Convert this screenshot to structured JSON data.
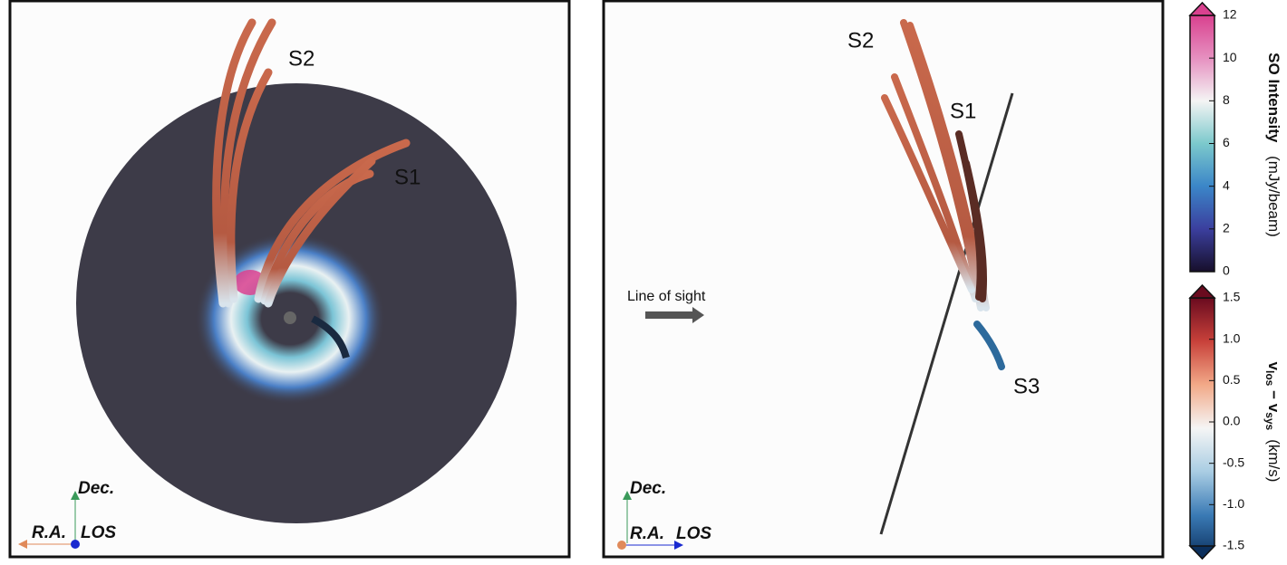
{
  "panels": [
    {
      "labels": [
        "S2",
        "S1"
      ],
      "axes": {
        "up": "Dec.",
        "left": "R.A.",
        "right": "LOS"
      }
    },
    {
      "labels": [
        "S2",
        "S1",
        "S3"
      ],
      "axes": {
        "up": "Dec.",
        "left": "R.A.",
        "right": "LOS"
      },
      "arrow_label": "Line of sight"
    }
  ],
  "colorbars": [
    {
      "title": "SO Intensity",
      "unit": "(mJy/beam)",
      "ticks": [
        0,
        2,
        4,
        6,
        8,
        10,
        12
      ],
      "colors": [
        "#170f2b",
        "#3b3f9e",
        "#3b86c8",
        "#7cc9cc",
        "#f4f4f4",
        "#e690c0",
        "#d9418f"
      ]
    },
    {
      "title": {
        "var1": "v",
        "sub1": "los",
        "op": " − ",
        "var2": "v",
        "sub2": "sys"
      },
      "unit": "(km/s)",
      "ticks": [
        {
          "value": 1.5,
          "label": "1.5"
        },
        {
          "value": 1.0,
          "label": "1.0"
        },
        {
          "value": 0.5,
          "label": "0.5"
        },
        {
          "value": 0.0,
          "label": "0.0"
        },
        {
          "value": -0.5,
          "label": "-0.5"
        },
        {
          "value": -1.0,
          "label": "-1.0"
        },
        {
          "value": -1.5,
          "label": "-1.5"
        }
      ],
      "colors": [
        "#0b2f5c",
        "#3a7ab5",
        "#a9cde3",
        "#f5f5f5",
        "#f2a988",
        "#c8413a",
        "#6a0b1f"
      ]
    }
  ]
}
